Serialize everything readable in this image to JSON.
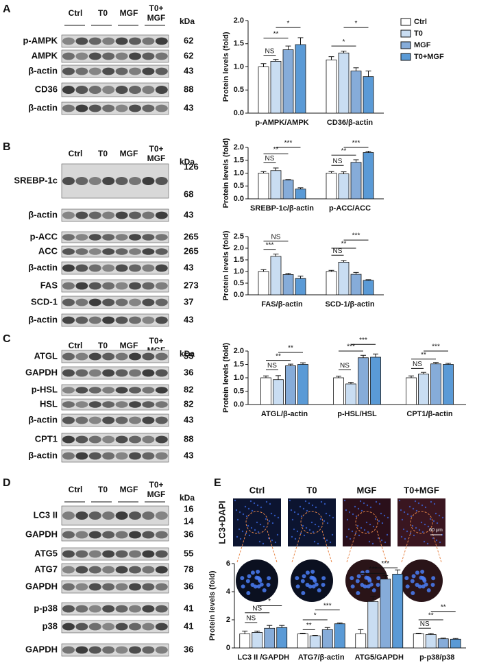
{
  "panels": [
    "A",
    "B",
    "C",
    "D",
    "E"
  ],
  "blot_header": {
    "lanes": [
      "Ctrl",
      "T0",
      "MGF"
    ],
    "combo": [
      "T0+",
      "MGF"
    ],
    "unit": "kDa"
  },
  "blots": [
    {
      "rows": [
        {
          "label": "p-AMPK",
          "kda": [
            62
          ]
        },
        {
          "label": "AMPK",
          "kda": [
            62
          ]
        },
        {
          "label": "β-actin",
          "kda": [
            43
          ]
        },
        {
          "label": "CD36",
          "kda": [
            88
          ]
        },
        {
          "label": "β-actin",
          "kda": [
            43
          ]
        }
      ]
    },
    {
      "rows": [
        {
          "label": "SREBP-1c",
          "kda": [
            126,
            68
          ]
        },
        {
          "label": "β-actin",
          "kda": [
            43
          ]
        },
        {
          "label": "p-ACC",
          "kda": [
            265
          ]
        },
        {
          "label": "ACC",
          "kda": [
            265
          ]
        },
        {
          "label": "β-actin",
          "kda": [
            43
          ]
        },
        {
          "label": "FAS",
          "kda": [
            273
          ]
        },
        {
          "label": "SCD-1",
          "kda": [
            37
          ]
        },
        {
          "label": "β-actin",
          "kda": [
            43
          ]
        }
      ]
    },
    {
      "rows": [
        {
          "label": "ATGL",
          "kda": [
            55
          ]
        },
        {
          "label": "GAPDH",
          "kda": [
            36
          ]
        },
        {
          "label": "p-HSL",
          "kda": [
            82
          ]
        },
        {
          "label": "HSL",
          "kda": [
            82
          ]
        },
        {
          "label": "β-actin",
          "kda": [
            43
          ]
        },
        {
          "label": "CPT1",
          "kda": [
            88
          ]
        },
        {
          "label": "β-actin",
          "kda": [
            43
          ]
        }
      ]
    },
    {
      "rows": [
        {
          "label": "LC3 II",
          "kda": [
            16,
            14
          ]
        },
        {
          "label": "GAPDH",
          "kda": [
            36
          ]
        },
        {
          "label": "ATG5",
          "kda": [
            55
          ]
        },
        {
          "label": "ATG7",
          "kda": [
            78
          ]
        },
        {
          "label": "GAPDH",
          "kda": [
            36
          ]
        },
        {
          "label": "p-p38",
          "kda": [
            41
          ]
        },
        {
          "label": "p38",
          "kda": [
            41
          ]
        },
        {
          "label": "GAPDH",
          "kda": [
            36
          ]
        }
      ]
    }
  ],
  "images": {
    "titles": [
      "Ctrl",
      "T0",
      "MGF",
      "T0+MGF"
    ],
    "stain": "LC3+DAPI",
    "scale": "60 μm"
  },
  "chart_data": [
    {
      "type": "bar",
      "ylabel": "Protein levels (fold)",
      "categories": [
        "p-AMPK/AMPK",
        "CD36/β-actin"
      ],
      "series": [
        {
          "name": "Ctrl",
          "color": "#ffffff",
          "values": [
            1.0,
            1.15
          ],
          "errors": [
            0.07,
            0.07
          ]
        },
        {
          "name": "T0",
          "color": "#c9ddf2",
          "values": [
            1.12,
            1.3
          ],
          "errors": [
            0.04,
            0.04
          ]
        },
        {
          "name": "MGF",
          "color": "#86acd9",
          "values": [
            1.37,
            0.91
          ],
          "errors": [
            0.08,
            0.07
          ]
        },
        {
          "name": "T0+MGF",
          "color": "#5a9ad6",
          "values": [
            1.48,
            0.79
          ],
          "errors": [
            0.15,
            0.12
          ]
        }
      ],
      "ylim": [
        0,
        2
      ],
      "yticks": [
        {
          "value": 0,
          "label": "0.0"
        },
        0.5,
        {
          "value": 1,
          "label": "1.0"
        },
        1.5,
        {
          "value": 2,
          "label": "2.0"
        }
      ],
      "annotations": [
        "NS",
        "**",
        "*",
        "*",
        "*"
      ],
      "legend": true
    },
    {
      "type": "bar",
      "ylabel": "Protein levels (fold)",
      "categories": [
        "SREBP-1c/β-actin",
        "p-ACC/ACC"
      ],
      "series": [
        {
          "name": "Ctrl",
          "color": "#ffffff",
          "values": [
            1.0,
            1.0
          ],
          "errors": [
            0.06,
            0.06
          ]
        },
        {
          "name": "T0",
          "color": "#c9ddf2",
          "values": [
            1.1,
            0.97
          ],
          "errors": [
            0.1,
            0.08
          ]
        },
        {
          "name": "MGF",
          "color": "#86acd9",
          "values": [
            0.73,
            1.42
          ],
          "errors": [
            0.02,
            0.1
          ]
        },
        {
          "name": "T0+MGF",
          "color": "#5a9ad6",
          "values": [
            0.38,
            1.8
          ],
          "errors": [
            0.05,
            0.05
          ]
        }
      ],
      "ylim": [
        0,
        2
      ],
      "yticks": [
        {
          "value": 0,
          "label": "0.0"
        },
        0.5,
        {
          "value": 1,
          "label": "1.0"
        },
        1.5,
        {
          "value": 2,
          "label": "2.0"
        }
      ],
      "annotations": [
        "NS",
        "**",
        "***",
        "NS",
        "**",
        "***"
      ]
    },
    {
      "type": "bar",
      "ylabel": "Protein levels (fold)",
      "categories": [
        "FAS/β-actin",
        "SCD-1/β-actin"
      ],
      "series": [
        {
          "name": "Ctrl",
          "color": "#ffffff",
          "values": [
            1.0,
            1.0
          ],
          "errors": [
            0.08,
            0.05
          ]
        },
        {
          "name": "T0",
          "color": "#c9ddf2",
          "values": [
            1.65,
            1.4
          ],
          "errors": [
            0.1,
            0.07
          ]
        },
        {
          "name": "MGF",
          "color": "#86acd9",
          "values": [
            0.87,
            0.88
          ],
          "errors": [
            0.05,
            0.08
          ]
        },
        {
          "name": "T0+MGF",
          "color": "#5a9ad6",
          "values": [
            0.7,
            0.62
          ],
          "errors": [
            0.1,
            0.03
          ]
        }
      ],
      "ylim": [
        0,
        2.5
      ],
      "yticks": [
        {
          "value": 0,
          "label": "0.0"
        },
        0.5,
        {
          "value": 1,
          "label": "1.0"
        },
        1.5,
        {
          "value": 2,
          "label": "2.0"
        },
        2.5
      ],
      "annotations": [
        "***",
        "NS",
        "NS",
        "**",
        "***"
      ]
    },
    {
      "type": "bar",
      "ylabel": "Protein levels (fold)",
      "categories": [
        "ATGL/β-actin",
        "p-HSL/HSL",
        "CPT1/β-actin"
      ],
      "series": [
        {
          "name": "Ctrl",
          "color": "#ffffff",
          "values": [
            1.0,
            1.0,
            1.0
          ],
          "errors": [
            0.07,
            0.06,
            0.07
          ]
        },
        {
          "name": "T0",
          "color": "#c9ddf2",
          "values": [
            0.93,
            0.77,
            1.14
          ],
          "errors": [
            0.15,
            0.06,
            0.06
          ]
        },
        {
          "name": "MGF",
          "color": "#86acd9",
          "values": [
            1.45,
            1.75,
            1.52
          ],
          "errors": [
            0.06,
            0.09,
            0.05
          ]
        },
        {
          "name": "T0+MGF",
          "color": "#5a9ad6",
          "values": [
            1.5,
            1.77,
            1.5
          ],
          "errors": [
            0.06,
            0.12,
            0.04
          ]
        }
      ],
      "ylim": [
        0,
        2
      ],
      "yticks": [
        {
          "value": 0,
          "label": "0.0"
        },
        0.5,
        {
          "value": 1,
          "label": "1.0"
        },
        1.5,
        {
          "value": 2,
          "label": "2.0"
        }
      ],
      "annotations": [
        "NS",
        "**",
        "**",
        "NS",
        "***",
        "***",
        "NS",
        "**",
        "***"
      ]
    },
    {
      "type": "bar",
      "ylabel": "Protein levels (fold)",
      "categories": [
        "LC3 II /GAPDH",
        "ATG7/β-actin",
        "ATG5/GAPDH",
        "p-p38/p38"
      ],
      "series": [
        {
          "name": "Ctrl",
          "color": "#ffffff",
          "values": [
            1.0,
            1.0,
            1.0,
            1.0
          ],
          "errors": [
            0.2,
            0.05,
            0.3,
            0.05
          ]
        },
        {
          "name": "T0",
          "color": "#c9ddf2",
          "values": [
            1.1,
            0.85,
            3.3,
            0.95
          ],
          "errors": [
            0.1,
            0.05,
            0.35,
            0.08
          ]
        },
        {
          "name": "MGF",
          "color": "#86acd9",
          "values": [
            1.4,
            1.3,
            4.9,
            0.65
          ],
          "errors": [
            0.2,
            0.15,
            0.25,
            0.05
          ]
        },
        {
          "name": "T0+MGF",
          "color": "#5a9ad6",
          "values": [
            1.45,
            1.72,
            5.25,
            0.62
          ],
          "errors": [
            0.15,
            0.05,
            0.3,
            0.05
          ]
        }
      ],
      "ylim": [
        0,
        6
      ],
      "yticks": [
        0,
        2,
        4,
        6
      ],
      "annotations": [
        "NS",
        "NS",
        "*",
        "**",
        "*",
        "***",
        "***",
        "***",
        "***",
        "NS",
        "**",
        "**"
      ]
    }
  ]
}
